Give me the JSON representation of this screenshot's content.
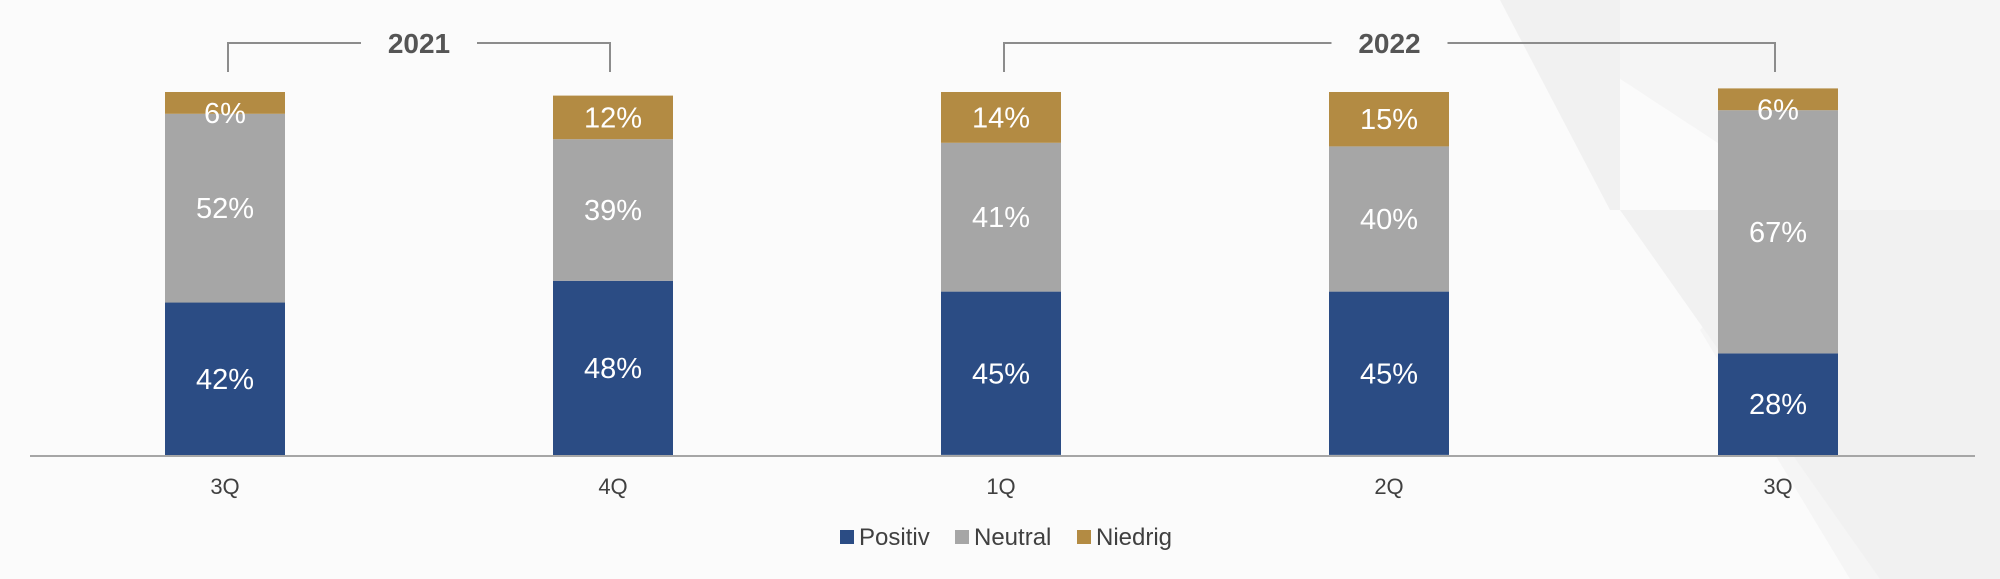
{
  "chart_data": {
    "type": "bar",
    "stacked": true,
    "categories": [
      "3Q",
      "4Q",
      "1Q",
      "2Q",
      "3Q"
    ],
    "groups": [
      {
        "label": "2021",
        "categories": [
          0,
          1
        ]
      },
      {
        "label": "2022",
        "categories": [
          2,
          3,
          4
        ]
      }
    ],
    "series": [
      {
        "name": "Positiv",
        "color": "#2b4c84",
        "values": [
          42,
          48,
          45,
          45,
          28
        ],
        "labels": [
          "42%",
          "48%",
          "45%",
          "45%",
          "28%"
        ]
      },
      {
        "name": "Neutral",
        "color": "#a6a6a6",
        "values": [
          52,
          39,
          41,
          40,
          67
        ],
        "labels": [
          "52%",
          "39%",
          "41%",
          "40%",
          "67%"
        ]
      },
      {
        "name": "Niedrig",
        "color": "#b38b43",
        "values": [
          6,
          12,
          14,
          15,
          6
        ],
        "labels": [
          "6%",
          "12%",
          "14%",
          "15%",
          "6%"
        ]
      }
    ],
    "ylim": [
      0,
      100
    ],
    "grid": false,
    "legend_position": "bottom-center",
    "title": "",
    "xlabel": "",
    "ylabel": ""
  }
}
